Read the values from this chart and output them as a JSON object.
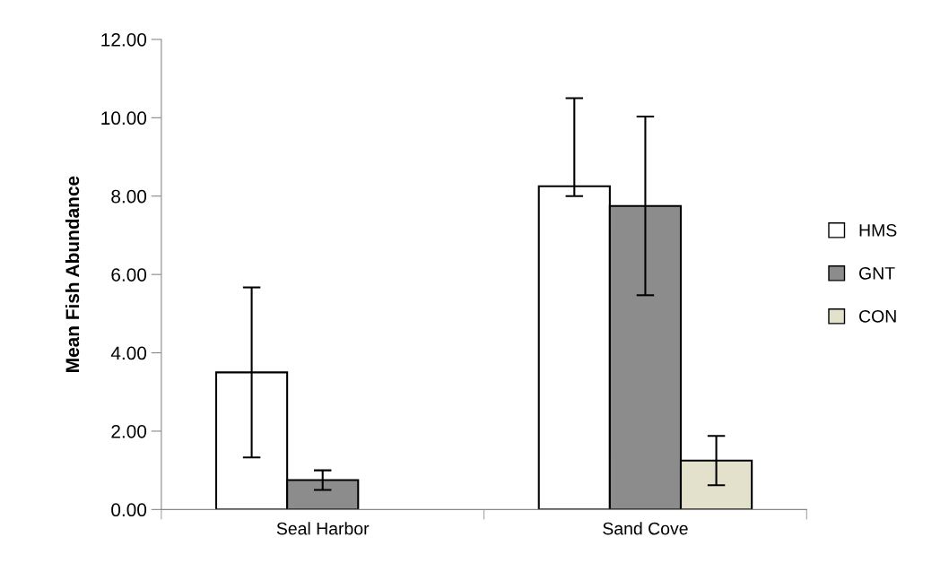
{
  "chart_data": {
    "type": "bar",
    "ylabel": "Mean Fish Abundance",
    "categories": [
      "Seal Harbor",
      "Sand Cove"
    ],
    "series": [
      {
        "name": "HMS",
        "color": "#ffffff",
        "values": [
          3.5,
          8.25
        ],
        "errors": [
          [
            1.33,
            5.67
          ],
          [
            8.0,
            10.5
          ]
        ]
      },
      {
        "name": "GNT",
        "color": "#8c8c8c",
        "values": [
          0.75,
          7.75
        ],
        "errors": [
          [
            0.5,
            1.0
          ],
          [
            5.47,
            10.03
          ]
        ]
      },
      {
        "name": "CON",
        "color": "#e3e0cc",
        "values": [
          null,
          1.25
        ],
        "errors": [
          null,
          [
            0.62,
            1.88
          ]
        ]
      }
    ],
    "ylim": [
      0,
      12
    ],
    "yticks": [
      {
        "value": 0,
        "label": "0.00"
      },
      {
        "value": 2,
        "label": "2.00"
      },
      {
        "value": 4,
        "label": "4.00"
      },
      {
        "value": 6,
        "label": "6.00"
      },
      {
        "value": 8,
        "label": "8.00"
      },
      {
        "value": 10,
        "label": "10.00"
      },
      {
        "value": 12,
        "label": "12.00"
      }
    ],
    "legend": "right"
  }
}
